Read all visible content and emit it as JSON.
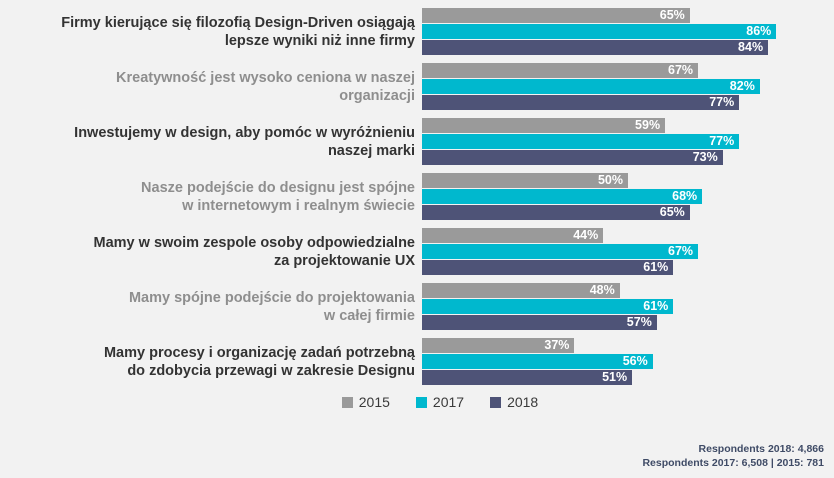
{
  "colors": {
    "background": "#f2f2f2",
    "series_2015": "#9a9a9a",
    "series_2017": "#00b8ce",
    "series_2018": "#4e5377",
    "label_dark": "#333333",
    "label_gray": "#8e8e8e",
    "footer_text": "#3f4b66",
    "bar_value_text": "#ffffff"
  },
  "rows": [
    {
      "lines": [
        "Firmy kierujące się filozofią Design-Driven osiągają",
        "lepsze wyniki niż inne firmy"
      ],
      "emphasis": "dark"
    },
    {
      "lines": [
        "Kreatywność jest wysoko ceniona w naszej",
        "organizacji"
      ],
      "emphasis": "gray"
    },
    {
      "lines": [
        "Inwestujemy w design, aby pomóc w wyróżnieniu",
        "naszej marki"
      ],
      "emphasis": "dark"
    },
    {
      "lines": [
        "Nasze podejście do designu jest spójne",
        "w internetowym i realnym świecie"
      ],
      "emphasis": "gray"
    },
    {
      "lines": [
        "Mamy w swoim zespole osoby odpowiedzialne",
        "za projektowanie UX"
      ],
      "emphasis": "dark"
    },
    {
      "lines": [
        "Mamy spójne podejście do projektowania",
        "w całej firmie"
      ],
      "emphasis": "gray"
    },
    {
      "lines": [
        "Mamy procesy i organizację zadań potrzebną",
        "do zdobycia przewagi w zakresie Designu"
      ],
      "emphasis": "dark"
    }
  ],
  "chart_data": {
    "type": "bar",
    "orientation": "horizontal",
    "categories": [
      "Firmy kierujące się filozofią Design-Driven osiągają lepsze wyniki niż inne firmy",
      "Kreatywność jest wysoko ceniona w naszej organizacji",
      "Inwestujemy w design, aby pomóc w wyróżnieniu naszej marki",
      "Nasze podejście do designu jest spójne w internetowym i realnym świecie",
      "Mamy w swoim zespole osoby odpowiedzialne za projektowanie UX",
      "Mamy spójne podejście do projektowania w całej firmie",
      "Mamy procesy i organizację zadań potrzebną do zdobycia przewagi w zakresie Designu"
    ],
    "series": [
      {
        "name": "2015",
        "color": "#9a9a9a",
        "values": [
          65,
          67,
          59,
          50,
          44,
          48,
          37
        ]
      },
      {
        "name": "2017",
        "color": "#00b8ce",
        "values": [
          86,
          82,
          77,
          68,
          67,
          61,
          56
        ]
      },
      {
        "name": "2018",
        "color": "#4e5377",
        "values": [
          84,
          77,
          73,
          65,
          61,
          57,
          51
        ]
      }
    ],
    "value_suffix": "%",
    "xlim": [
      0,
      100
    ],
    "grid": false,
    "legend_position": "bottom"
  },
  "footer": {
    "line1": "Respondents 2018: 4,866",
    "line2": "Respondents 2017: 6,508 | 2015: 781"
  }
}
